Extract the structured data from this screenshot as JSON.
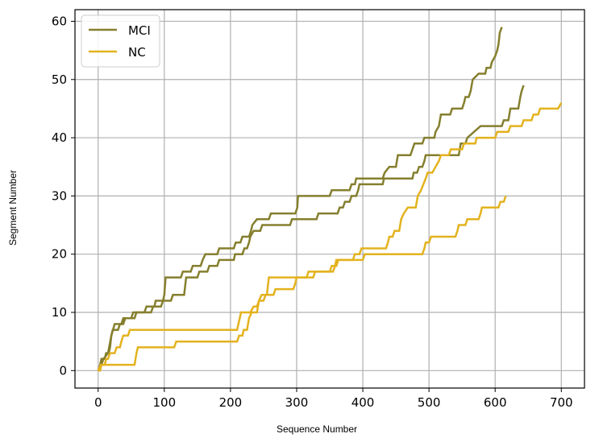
{
  "chart_data": {
    "type": "line",
    "title": "",
    "xlabel": "Sequence Number",
    "ylabel": "Segment Number",
    "xlim": [
      -35,
      735
    ],
    "ylim": [
      -3,
      62
    ],
    "xticks": [
      0,
      100,
      200,
      300,
      400,
      500,
      600,
      700
    ],
    "yticks": [
      0,
      10,
      20,
      30,
      40,
      50,
      60
    ],
    "grid": true,
    "legend_position": "top-left",
    "legend": [
      {
        "label": "MCI",
        "color": "#857f2e"
      },
      {
        "label": "NC",
        "color": "#e3b21e"
      }
    ],
    "series": [
      {
        "name": "MCI",
        "color": "#857f2e",
        "points": [
          [
            0,
            0
          ],
          [
            3,
            1
          ],
          [
            5,
            2
          ],
          [
            10,
            2
          ],
          [
            12,
            3
          ],
          [
            16,
            3
          ],
          [
            18,
            4
          ],
          [
            20,
            6
          ],
          [
            22,
            7
          ],
          [
            30,
            7
          ],
          [
            33,
            8
          ],
          [
            38,
            8
          ],
          [
            41,
            9
          ],
          [
            50,
            9
          ],
          [
            53,
            10
          ],
          [
            80,
            10
          ],
          [
            83,
            11
          ],
          [
            95,
            11
          ],
          [
            98,
            12
          ],
          [
            100,
            13
          ],
          [
            102,
            16
          ],
          [
            125,
            16
          ],
          [
            128,
            17
          ],
          [
            140,
            17
          ],
          [
            143,
            18
          ],
          [
            155,
            18
          ],
          [
            158,
            19
          ],
          [
            162,
            20
          ],
          [
            180,
            20
          ],
          [
            183,
            21
          ],
          [
            205,
            21
          ],
          [
            208,
            22
          ],
          [
            215,
            22
          ],
          [
            218,
            23
          ],
          [
            228,
            23
          ],
          [
            231,
            24
          ],
          [
            233,
            25
          ],
          [
            240,
            26
          ],
          [
            258,
            26
          ],
          [
            261,
            27
          ],
          [
            298,
            27
          ],
          [
            301,
            28
          ],
          [
            302,
            30
          ],
          [
            350,
            30
          ],
          [
            353,
            31
          ],
          [
            380,
            31
          ],
          [
            383,
            32
          ],
          [
            388,
            32
          ],
          [
            390,
            33
          ],
          [
            430,
            33
          ],
          [
            433,
            34
          ],
          [
            440,
            35
          ],
          [
            450,
            35
          ],
          [
            453,
            37
          ],
          [
            472,
            37
          ],
          [
            475,
            38
          ],
          [
            478,
            39
          ],
          [
            490,
            39
          ],
          [
            493,
            40
          ],
          [
            508,
            40
          ],
          [
            510,
            41
          ],
          [
            515,
            42
          ],
          [
            518,
            44
          ],
          [
            532,
            44
          ],
          [
            535,
            45
          ],
          [
            550,
            45
          ],
          [
            553,
            46
          ],
          [
            555,
            47
          ],
          [
            560,
            47
          ],
          [
            563,
            48
          ],
          [
            566,
            50
          ],
          [
            575,
            51
          ],
          [
            585,
            51
          ],
          [
            587,
            52
          ],
          [
            593,
            52
          ],
          [
            595,
            53
          ],
          [
            600,
            54
          ],
          [
            603,
            55
          ],
          [
            605,
            56
          ],
          [
            607,
            58
          ],
          [
            610,
            59
          ]
        ]
      },
      {
        "name": "MCI",
        "color": "#857f2e",
        "points": [
          [
            0,
            0
          ],
          [
            5,
            1
          ],
          [
            8,
            2
          ],
          [
            15,
            3
          ],
          [
            20,
            6
          ],
          [
            25,
            8
          ],
          [
            35,
            8
          ],
          [
            38,
            9
          ],
          [
            55,
            9
          ],
          [
            58,
            10
          ],
          [
            70,
            10
          ],
          [
            73,
            11
          ],
          [
            85,
            11
          ],
          [
            87,
            12
          ],
          [
            110,
            12
          ],
          [
            113,
            13
          ],
          [
            130,
            13
          ],
          [
            133,
            16
          ],
          [
            150,
            16
          ],
          [
            153,
            17
          ],
          [
            165,
            17
          ],
          [
            168,
            18
          ],
          [
            180,
            18
          ],
          [
            183,
            19
          ],
          [
            205,
            19
          ],
          [
            207,
            20
          ],
          [
            218,
            20
          ],
          [
            221,
            21
          ],
          [
            225,
            21
          ],
          [
            228,
            22
          ],
          [
            230,
            23
          ],
          [
            235,
            24
          ],
          [
            245,
            24
          ],
          [
            248,
            25
          ],
          [
            290,
            25
          ],
          [
            293,
            26
          ],
          [
            330,
            26
          ],
          [
            333,
            27
          ],
          [
            362,
            27
          ],
          [
            365,
            28
          ],
          [
            370,
            28
          ],
          [
            373,
            29
          ],
          [
            380,
            29
          ],
          [
            383,
            30
          ],
          [
            390,
            30
          ],
          [
            393,
            31
          ],
          [
            395,
            32
          ],
          [
            430,
            32
          ],
          [
            432,
            33
          ],
          [
            475,
            33
          ],
          [
            477,
            34
          ],
          [
            482,
            34
          ],
          [
            485,
            35
          ],
          [
            490,
            35
          ],
          [
            493,
            36
          ],
          [
            495,
            37
          ],
          [
            545,
            37
          ],
          [
            548,
            39
          ],
          [
            555,
            39
          ],
          [
            558,
            40
          ],
          [
            568,
            41
          ],
          [
            578,
            42
          ],
          [
            610,
            42
          ],
          [
            613,
            43
          ],
          [
            620,
            43
          ],
          [
            623,
            45
          ],
          [
            635,
            45
          ],
          [
            638,
            47
          ],
          [
            640,
            48
          ],
          [
            643,
            49
          ]
        ]
      },
      {
        "name": "NC",
        "color": "#e3b21e",
        "points": [
          [
            0,
            0
          ],
          [
            4,
            1
          ],
          [
            10,
            1
          ],
          [
            12,
            2
          ],
          [
            15,
            2
          ],
          [
            18,
            3
          ],
          [
            25,
            3
          ],
          [
            28,
            4
          ],
          [
            33,
            4
          ],
          [
            35,
            5
          ],
          [
            38,
            6
          ],
          [
            45,
            6
          ],
          [
            48,
            7
          ],
          [
            210,
            7
          ],
          [
            212,
            8
          ],
          [
            214,
            9
          ],
          [
            216,
            10
          ],
          [
            230,
            10
          ],
          [
            235,
            11
          ],
          [
            240,
            11
          ],
          [
            243,
            12
          ],
          [
            250,
            12
          ],
          [
            253,
            13
          ],
          [
            265,
            13
          ],
          [
            268,
            14
          ],
          [
            295,
            14
          ],
          [
            298,
            15
          ],
          [
            300,
            16
          ],
          [
            325,
            16
          ],
          [
            328,
            17
          ],
          [
            355,
            17
          ],
          [
            358,
            18
          ],
          [
            360,
            19
          ],
          [
            385,
            19
          ],
          [
            388,
            20
          ],
          [
            395,
            20
          ],
          [
            398,
            21
          ],
          [
            435,
            21
          ],
          [
            438,
            22
          ],
          [
            440,
            23
          ],
          [
            445,
            23
          ],
          [
            448,
            24
          ],
          [
            455,
            24
          ],
          [
            458,
            26
          ],
          [
            462,
            27
          ],
          [
            468,
            28
          ],
          [
            480,
            28
          ],
          [
            483,
            30
          ],
          [
            488,
            31
          ],
          [
            495,
            33
          ],
          [
            498,
            34
          ],
          [
            505,
            34
          ],
          [
            510,
            35
          ],
          [
            515,
            36
          ],
          [
            518,
            37
          ],
          [
            530,
            37
          ],
          [
            533,
            38
          ],
          [
            550,
            38
          ],
          [
            553,
            39
          ],
          [
            570,
            39
          ],
          [
            572,
            40
          ],
          [
            600,
            40
          ],
          [
            603,
            41
          ],
          [
            620,
            41
          ],
          [
            623,
            42
          ],
          [
            640,
            42
          ],
          [
            643,
            43
          ],
          [
            655,
            43
          ],
          [
            658,
            44
          ],
          [
            665,
            44
          ],
          [
            668,
            45
          ],
          [
            695,
            45
          ],
          [
            700,
            46
          ]
        ]
      },
      {
        "name": "NC",
        "color": "#e3b21e",
        "points": [
          [
            0,
            0
          ],
          [
            3,
            0
          ],
          [
            5,
            1
          ],
          [
            55,
            1
          ],
          [
            58,
            3
          ],
          [
            60,
            4
          ],
          [
            115,
            4
          ],
          [
            118,
            5
          ],
          [
            210,
            5
          ],
          [
            213,
            6
          ],
          [
            218,
            6
          ],
          [
            220,
            7
          ],
          [
            225,
            7
          ],
          [
            228,
            9
          ],
          [
            232,
            10
          ],
          [
            240,
            10
          ],
          [
            243,
            12
          ],
          [
            247,
            13
          ],
          [
            255,
            13
          ],
          [
            258,
            16
          ],
          [
            315,
            16
          ],
          [
            318,
            17
          ],
          [
            350,
            17
          ],
          [
            353,
            18
          ],
          [
            360,
            18
          ],
          [
            363,
            19
          ],
          [
            400,
            19
          ],
          [
            403,
            20
          ],
          [
            490,
            20
          ],
          [
            493,
            21
          ],
          [
            495,
            22
          ],
          [
            500,
            22
          ],
          [
            503,
            23
          ],
          [
            540,
            23
          ],
          [
            543,
            24
          ],
          [
            545,
            25
          ],
          [
            555,
            25
          ],
          [
            558,
            26
          ],
          [
            575,
            26
          ],
          [
            578,
            27
          ],
          [
            580,
            28
          ],
          [
            605,
            28
          ],
          [
            608,
            29
          ],
          [
            613,
            29
          ],
          [
            616,
            30
          ]
        ]
      }
    ]
  }
}
